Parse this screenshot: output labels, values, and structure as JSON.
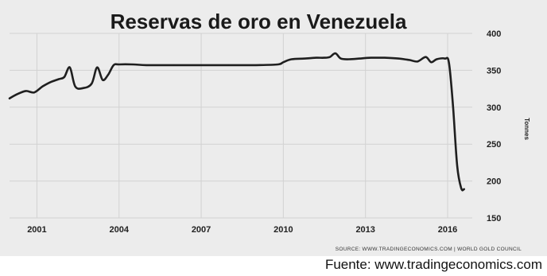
{
  "chart_data": {
    "type": "line",
    "title": "Reservas de oro en Venezuela",
    "ylabel": "Tonnes",
    "ylim": [
      150,
      400
    ],
    "xlim": [
      2000.0,
      2016.9
    ],
    "x_ticks": [
      "2001",
      "2004",
      "2007",
      "2010",
      "2013",
      "2016"
    ],
    "y_ticks": [
      "400",
      "350",
      "300",
      "250",
      "200",
      "150"
    ],
    "grid": true,
    "source_note": "SOURCE: WWW.TRADINGECONOMICS.COM  |  WORLD GOLD COUNCIL",
    "series": [
      {
        "x": [
          2000.0,
          2000.3,
          2000.6,
          2000.9,
          2001.2,
          2001.5,
          2001.8,
          2002.0,
          2002.2,
          2002.4,
          2002.7,
          2003.0,
          2003.2,
          2003.4,
          2003.6,
          2003.8,
          2004.0,
          2004.5,
          2005.0,
          2006.0,
          2007.0,
          2008.0,
          2009.0,
          2009.8,
          2010.0,
          2010.3,
          2010.8,
          2011.2,
          2011.5,
          2011.7,
          2011.9,
          2012.1,
          2012.4,
          2012.8,
          2013.2,
          2013.7,
          2014.2,
          2014.6,
          2014.9,
          2015.2,
          2015.4,
          2015.6,
          2015.9,
          2016.05,
          2016.2,
          2016.35,
          2016.5,
          2016.6
        ],
        "y": [
          312,
          318,
          322,
          320,
          328,
          334,
          338,
          341,
          354,
          328,
          326,
          332,
          354,
          337,
          344,
          357,
          358,
          358,
          357,
          357,
          357,
          357,
          357,
          358,
          361,
          365,
          366,
          367,
          367,
          368,
          373,
          366,
          365,
          366,
          367,
          367,
          366,
          364,
          362,
          368,
          361,
          365,
          366,
          360,
          300,
          220,
          190,
          189
        ]
      }
    ]
  },
  "caption": "Fuente: www.tradingeconomics.com"
}
